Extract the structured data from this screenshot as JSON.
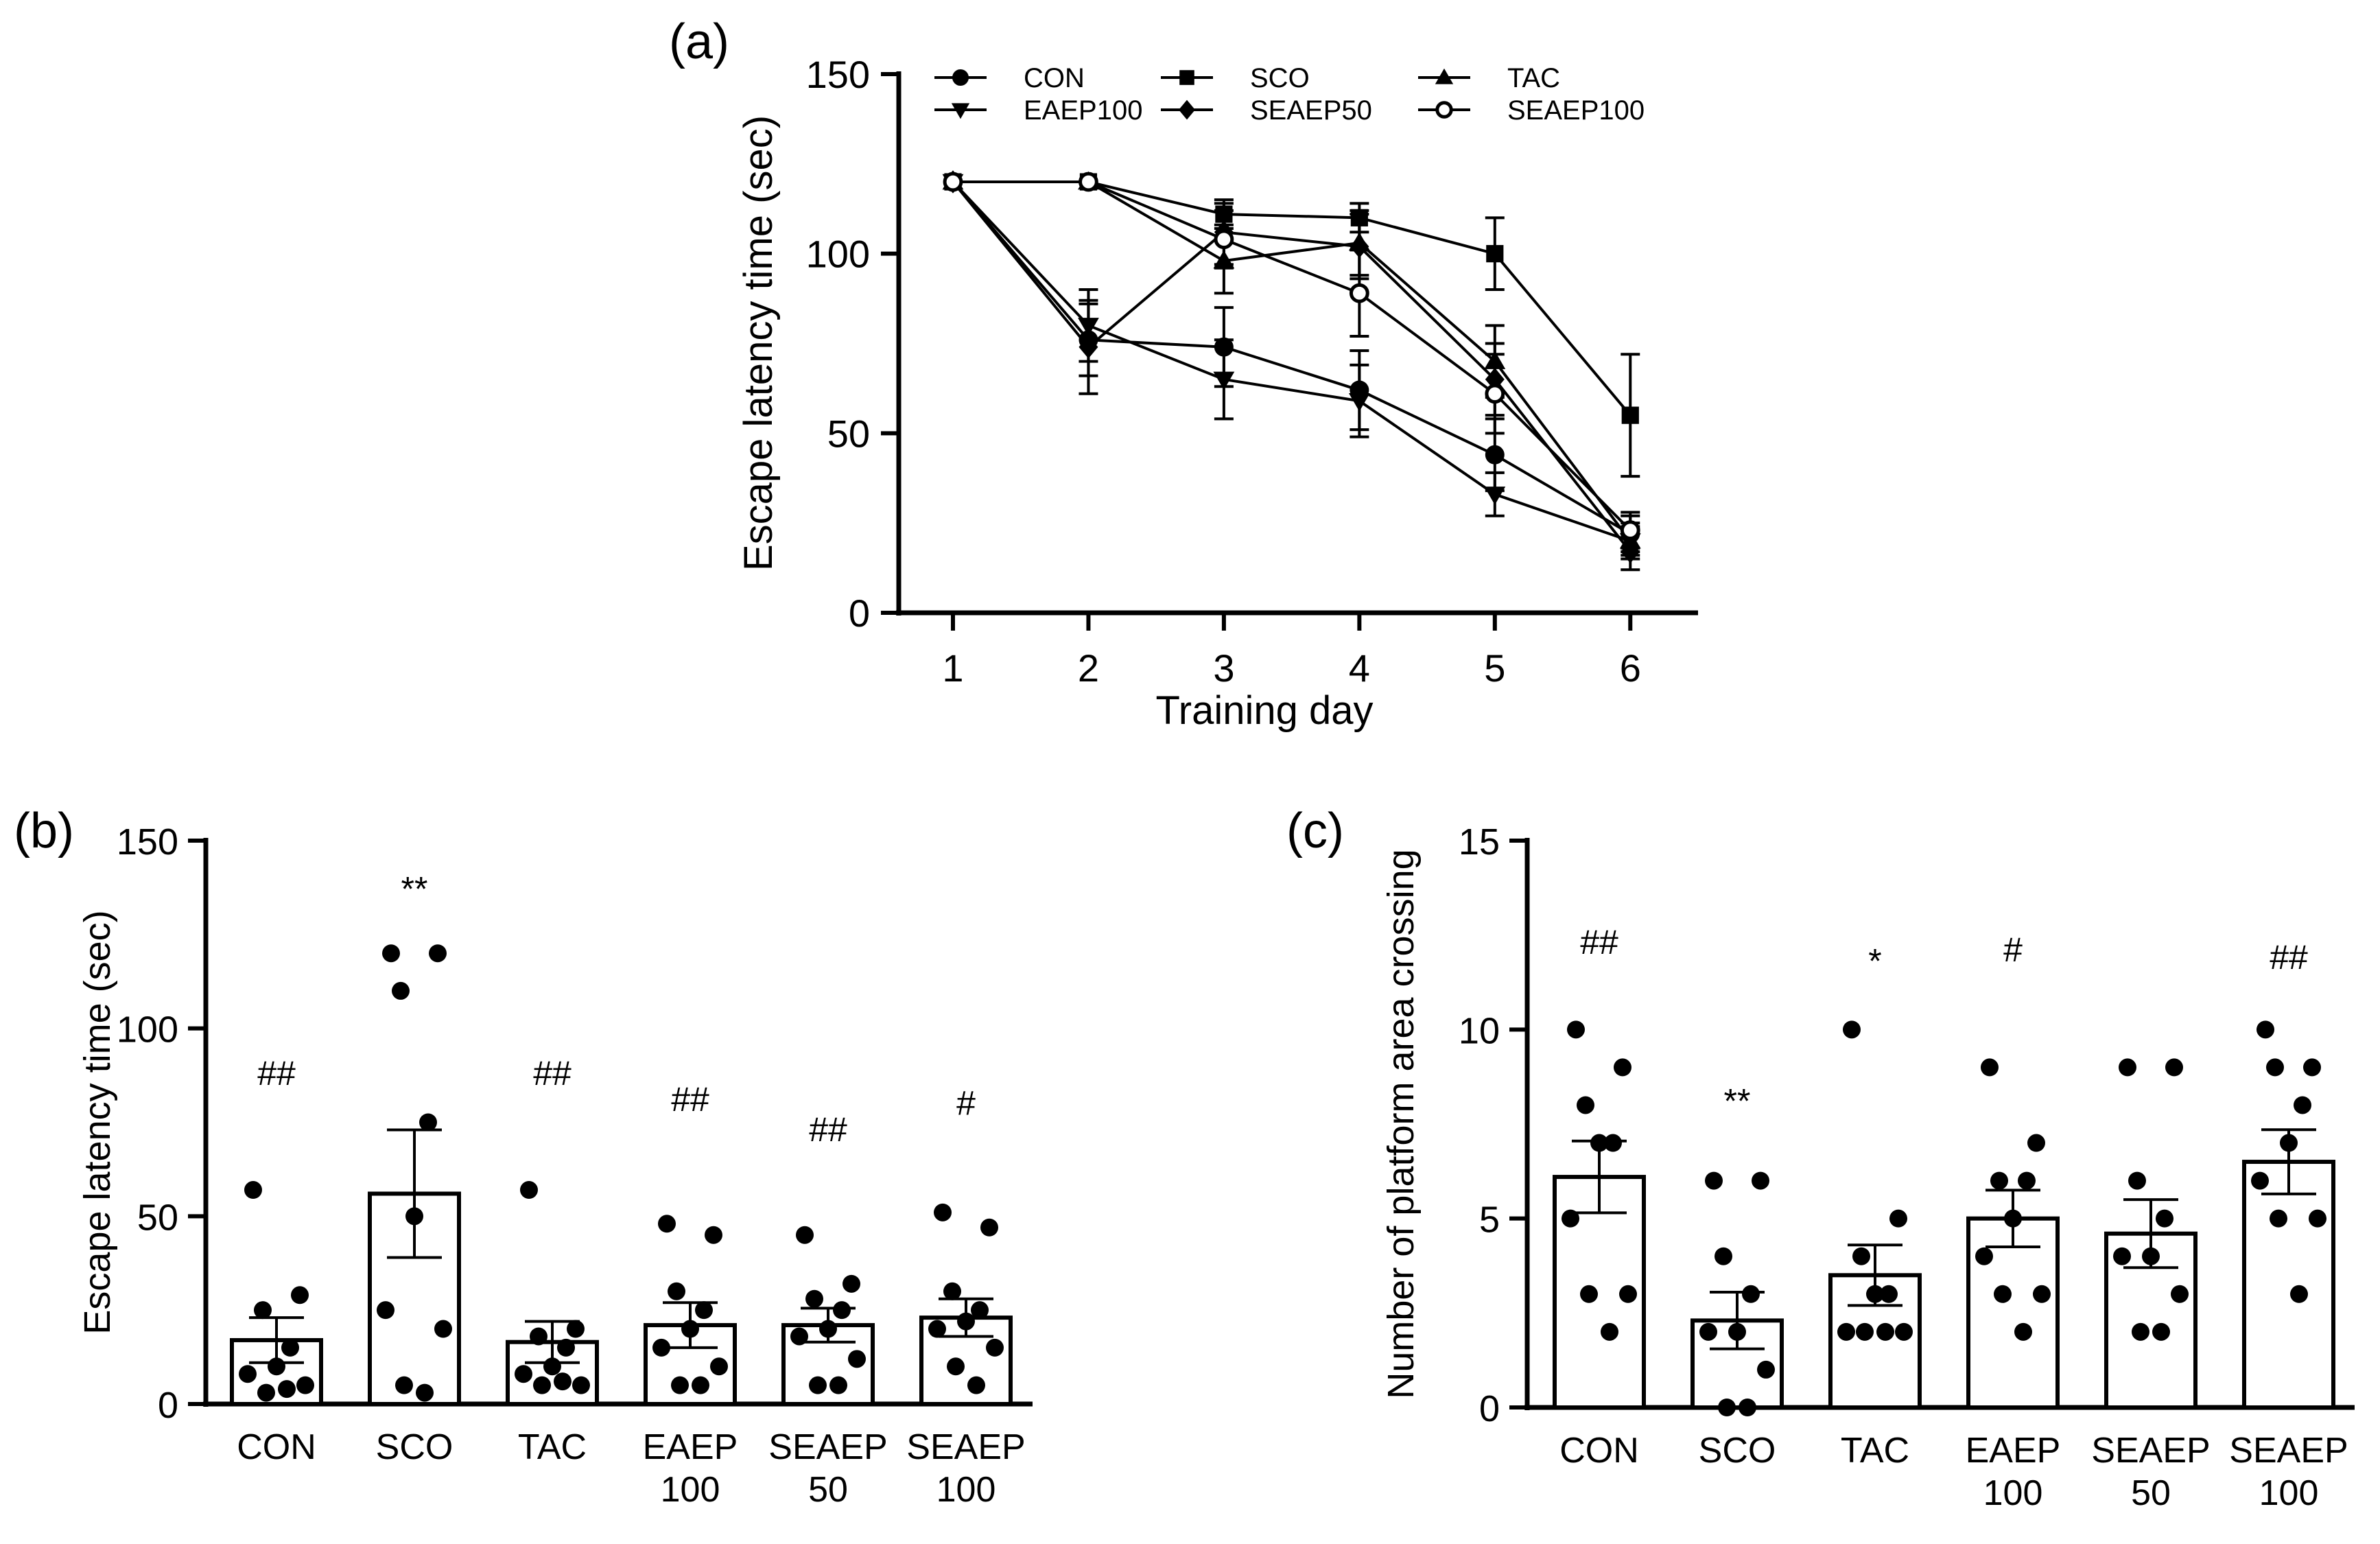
{
  "chart_data": [
    {
      "type": "line",
      "panel_label": "(a)",
      "xlabel": "Training day",
      "ylabel": "Escape latency time (sec)",
      "xlim": [
        0.6,
        6.5
      ],
      "ylim": [
        0,
        150
      ],
      "x_ticks": [
        "1",
        "2",
        "3",
        "4",
        "5",
        "6"
      ],
      "y_ticks": [
        "0",
        "50",
        "100",
        "150"
      ],
      "x": [
        1,
        2,
        3,
        4,
        5,
        6
      ],
      "legend_position": "top",
      "series": [
        {
          "name": "CON",
          "marker": "circle",
          "values": [
            120,
            76,
            74,
            62,
            44,
            22
          ],
          "errors": [
            0,
            10,
            11,
            11,
            10,
            5
          ]
        },
        {
          "name": "SCO",
          "marker": "square",
          "values": [
            120,
            120,
            111,
            110,
            100,
            55
          ],
          "errors": [
            0,
            0,
            3,
            4,
            10,
            17
          ]
        },
        {
          "name": "TAC",
          "marker": "triangle-up",
          "values": [
            120,
            120,
            98,
            103,
            70,
            20
          ],
          "errors": [
            0,
            0,
            9,
            9,
            10,
            4
          ]
        },
        {
          "name": "EAEP100",
          "marker": "triangle-down",
          "values": [
            120,
            80,
            65,
            59,
            33,
            20
          ],
          "errors": [
            0,
            10,
            11,
            10,
            6,
            5
          ]
        },
        {
          "name": "SEAEP50",
          "marker": "diamond",
          "values": [
            120,
            74,
            106,
            102,
            65,
            17
          ],
          "errors": [
            0,
            13,
            9,
            9,
            10,
            5
          ]
        },
        {
          "name": "SEAEP100",
          "marker": "open-circle",
          "values": [
            120,
            120,
            104,
            89,
            61,
            23
          ],
          "errors": [
            0,
            0,
            8,
            12,
            11,
            5
          ]
        }
      ]
    },
    {
      "type": "bar",
      "panel_label": "(b)",
      "xlabel": "",
      "ylabel": "Escape latency time (sec)",
      "ylim": [
        0,
        150
      ],
      "y_ticks": [
        "0",
        "50",
        "100",
        "150"
      ],
      "categories": [
        {
          "line1": "CON",
          "line2": ""
        },
        {
          "line1": "SCO",
          "line2": ""
        },
        {
          "line1": "TAC",
          "line2": ""
        },
        {
          "line1": "EAEP",
          "line2": "100"
        },
        {
          "line1": "SEAEP",
          "line2": "50"
        },
        {
          "line1": "SEAEP",
          "line2": "100"
        }
      ],
      "values": [
        17,
        56,
        16.5,
        21,
        21,
        23
      ],
      "errors": [
        6,
        17,
        5.5,
        6,
        4.5,
        5
      ],
      "points": [
        [
          57,
          29,
          25,
          15,
          10,
          8,
          5,
          3,
          4
        ],
        [
          120,
          120,
          110,
          75,
          50,
          25,
          20,
          5,
          3
        ],
        [
          57,
          20,
          18,
          15,
          10,
          8,
          5,
          5,
          6
        ],
        [
          48,
          45,
          30,
          25,
          20,
          15,
          10,
          5,
          5
        ],
        [
          45,
          32,
          28,
          25,
          20,
          18,
          12,
          5,
          5
        ],
        [
          51,
          47,
          30,
          25,
          22,
          20,
          15,
          10,
          5
        ]
      ],
      "annotations": [
        "##",
        "**",
        "##",
        "##",
        "##",
        "#"
      ],
      "annotation_values": [
        85,
        134,
        85,
        78,
        70,
        77
      ]
    },
    {
      "type": "bar",
      "panel_label": "(c)",
      "xlabel": "",
      "ylabel": "Number of platform area crossing",
      "ylim": [
        0,
        15
      ],
      "y_ticks": [
        "0",
        "5",
        "10",
        "15"
      ],
      "categories": [
        {
          "line1": "CON",
          "line2": ""
        },
        {
          "line1": "SCO",
          "line2": ""
        },
        {
          "line1": "TAC",
          "line2": ""
        },
        {
          "line1": "EAEP",
          "line2": "100"
        },
        {
          "line1": "SEAEP",
          "line2": "50"
        },
        {
          "line1": "SEAEP",
          "line2": "100"
        }
      ],
      "values": [
        6.1,
        2.3,
        3.5,
        5.0,
        4.6,
        6.5
      ],
      "errors": [
        0.95,
        0.75,
        0.8,
        0.75,
        0.9,
        0.85
      ],
      "points": [
        [
          10,
          9,
          8,
          7,
          7,
          5,
          3,
          3,
          2
        ],
        [
          6,
          6,
          4,
          3,
          2,
          2,
          1,
          0,
          0
        ],
        [
          10,
          5,
          4,
          3,
          3,
          2,
          2,
          2,
          2
        ],
        [
          9,
          7,
          6,
          6,
          5,
          4,
          3,
          3,
          2
        ],
        [
          9,
          9,
          6,
          5,
          4,
          4,
          3,
          2,
          2
        ],
        [
          10,
          9,
          9,
          8,
          7,
          6,
          5,
          5,
          3
        ]
      ],
      "annotations": [
        "##",
        "**",
        "*",
        "#",
        "",
        "##"
      ],
      "annotation_values": [
        12,
        7.8,
        11.5,
        11.8,
        0,
        11.6
      ]
    }
  ]
}
